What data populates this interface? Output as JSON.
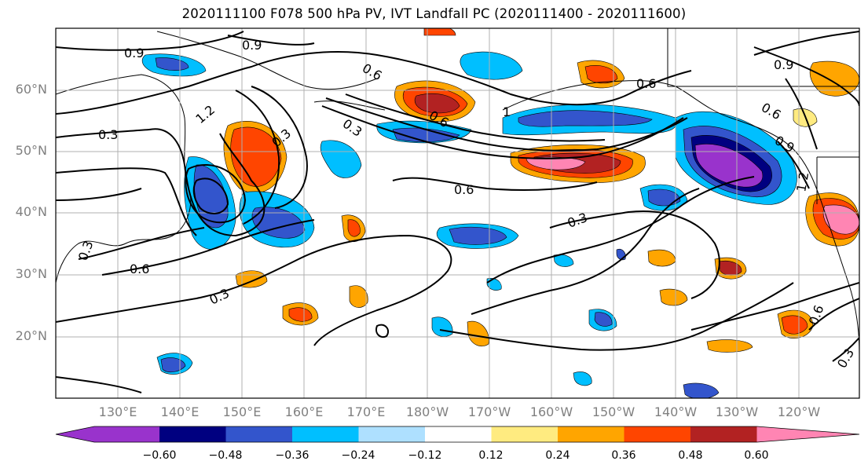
{
  "title": "2020111100 F078 500 hPa PV, IVT Landfall PC (2020111400 - 2020111600)",
  "lat_labels": [
    "60°N",
    "50°N",
    "40°N",
    "30°N",
    "20°N"
  ],
  "lon_labels": [
    "130°E",
    "140°E",
    "150°E",
    "160°E",
    "170°E",
    "180°W",
    "170°W",
    "160°W",
    "150°W",
    "140°W",
    "130°W",
    "120°W"
  ],
  "colorbar": {
    "ticks": [
      "−0.60",
      "−0.48",
      "−0.36",
      "−0.24",
      "−0.12",
      "0.12",
      "0.24",
      "0.36",
      "0.48",
      "0.60"
    ],
    "colors": [
      "#9933cc",
      "#000080",
      "#3355cc",
      "#00bfff",
      "#aee0ff",
      "#ffffff",
      "#ffeb80",
      "#ffa500",
      "#ff4500",
      "#b22222",
      "#ff85b3"
    ]
  },
  "contour_labels": [
    "0.9",
    "0.9",
    "0.6",
    "0.3",
    "1.2",
    "0.3",
    "0.3",
    "0.6",
    "1",
    "0.6",
    "0.9",
    "0.6",
    "0.6",
    "0.9",
    "1.2",
    "0.6",
    "0.3",
    "0.3",
    "0.3",
    "0.6",
    "0.3"
  ]
}
